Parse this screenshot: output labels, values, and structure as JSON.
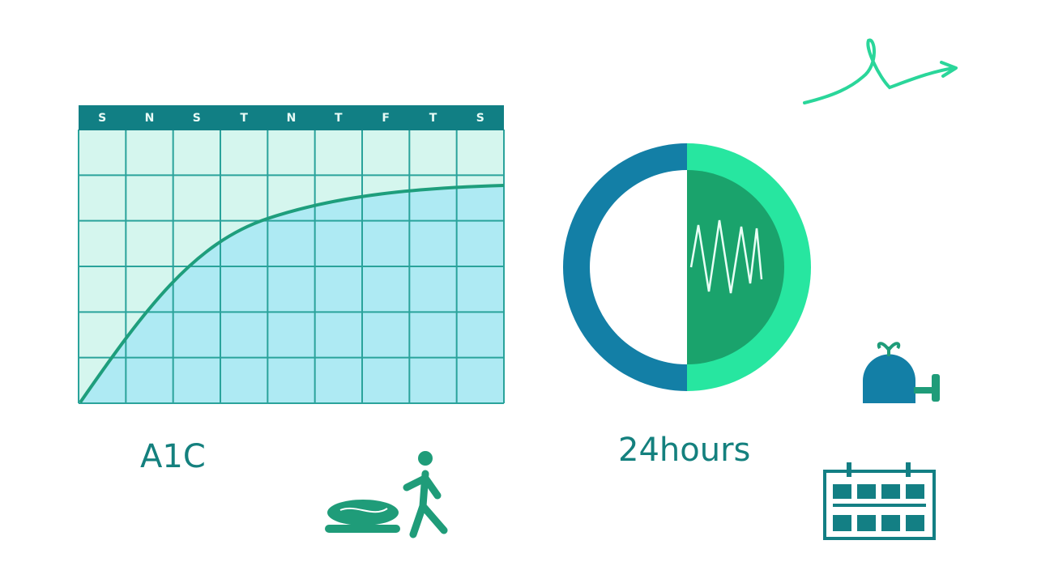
{
  "calendar": {
    "days": [
      "S",
      "N",
      "S",
      "T",
      "N",
      "T",
      "F",
      "T",
      "S"
    ]
  },
  "labels": {
    "a1c": "A1C",
    "duration": "24hours"
  }
}
